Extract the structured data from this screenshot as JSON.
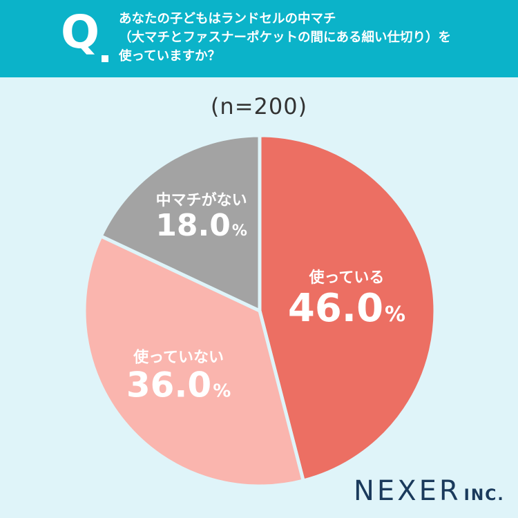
{
  "header": {
    "q_mark": "Q",
    "question_lines": [
      "あなたの子どもはランドセルの中マチ",
      "（大マチとファスナーポケットの間にある細い仕切り）を",
      "使っていますか？"
    ]
  },
  "sample_label": "(n=200)",
  "colors": {
    "header_bg": "#0bb3c9",
    "background": "#dff4f9",
    "slice_using": "#ec6f63",
    "slice_not_using": "#fab5ae",
    "slice_none": "#a3a3a3",
    "logo": "#1a3a5c"
  },
  "chart_data": {
    "type": "pie",
    "title": "",
    "start_angle_deg": 0,
    "direction": "clockwise",
    "slices": [
      {
        "label": "使っている",
        "value": 46.0,
        "display": "46.0",
        "unit": "%",
        "color": "#ec6f63"
      },
      {
        "label": "使っていない",
        "value": 36.0,
        "display": "36.0",
        "unit": "%",
        "color": "#fab5ae"
      },
      {
        "label": "中マチがない",
        "value": 18.0,
        "display": "18.0",
        "unit": "%",
        "color": "#a3a3a3"
      }
    ]
  },
  "logo": {
    "main": "NEXER",
    "sub": "INC."
  }
}
